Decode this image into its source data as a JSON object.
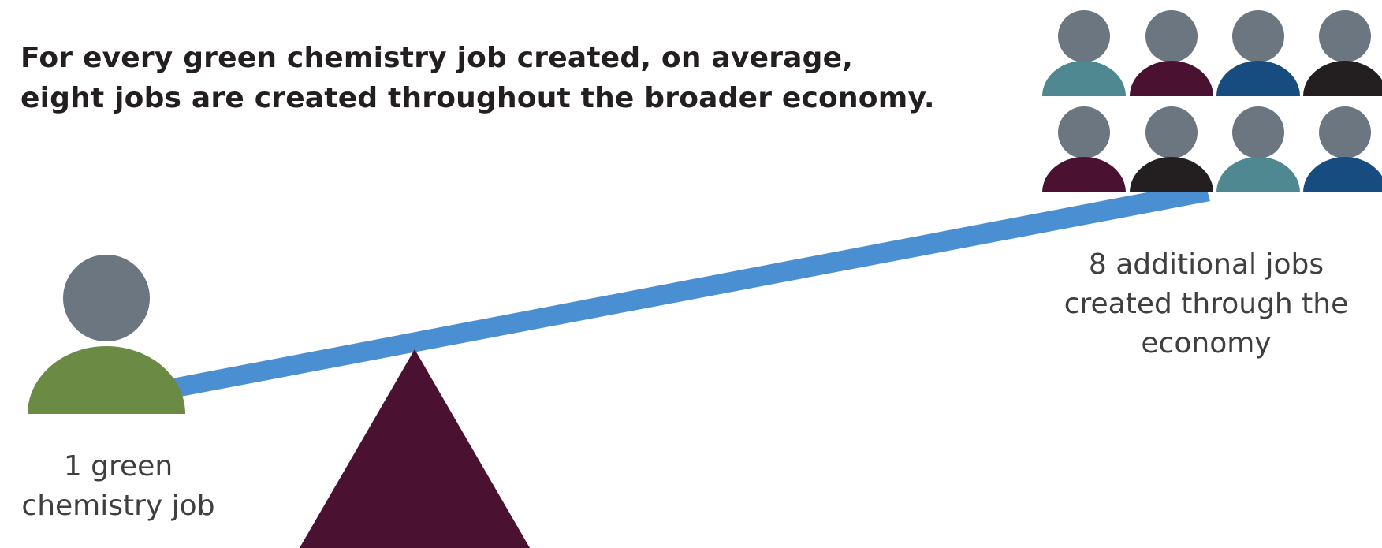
{
  "headline": {
    "line1": "For every green chemistry job created, on average,",
    "line2": "eight jobs are created throughout the broader economy."
  },
  "left_label": {
    "line1": "1 green",
    "line2": "chemistry job"
  },
  "right_label": {
    "line1": "8 additional jobs",
    "line2": "created through the",
    "line3": "economy"
  },
  "colors": {
    "head_gray": "#6b7680",
    "green_body": "#6b8a43",
    "beam_blue": "#4a8fd1",
    "fulcrum_plum": "#4a1230",
    "teal": "#4f8891",
    "plum": "#4a1230",
    "navy": "#164c80",
    "black": "#231f20"
  },
  "right_figures": [
    {
      "color": "teal"
    },
    {
      "color": "plum"
    },
    {
      "color": "navy"
    },
    {
      "color": "black"
    },
    {
      "color": "plum"
    },
    {
      "color": "black"
    },
    {
      "color": "teal"
    },
    {
      "color": "navy"
    }
  ]
}
